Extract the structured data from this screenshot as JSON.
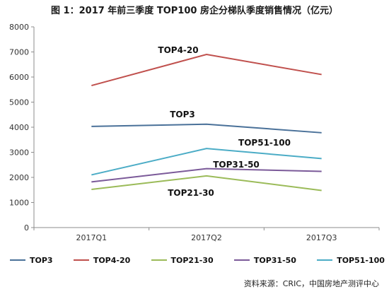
{
  "chart_data": {
    "type": "line",
    "title": "图 1：2017 年前三季度 TOP100 房企分梯队季度销售情况（亿元）",
    "categories": [
      "2017Q1",
      "2017Q2",
      "2017Q3"
    ],
    "ylim": [
      0,
      8000
    ],
    "yticks": [
      0,
      1000,
      2000,
      3000,
      4000,
      5000,
      6000,
      7000,
      8000
    ],
    "grid": false,
    "legend_position": "bottom",
    "series": [
      {
        "name": "TOP3",
        "values": [
          4030,
          4120,
          3780
        ],
        "color": "#4a7199"
      },
      {
        "name": "TOP4-20",
        "values": [
          5660,
          6900,
          6100
        ],
        "color": "#c0504d"
      },
      {
        "name": "TOP21-30",
        "values": [
          1520,
          2060,
          1480
        ],
        "color": "#9bbb59"
      },
      {
        "name": "TOP31-50",
        "values": [
          1820,
          2350,
          2240
        ],
        "color": "#7b5a99"
      },
      {
        "name": "TOP51-100",
        "values": [
          2100,
          3150,
          2750
        ],
        "color": "#4bacc6"
      }
    ],
    "annotations": [
      "TOP4-20",
      "TOP3",
      "TOP51-100",
      "TOP31-50",
      "TOP21-30"
    ]
  },
  "source": "资料来源：CRIC，中国房地产测评中心"
}
